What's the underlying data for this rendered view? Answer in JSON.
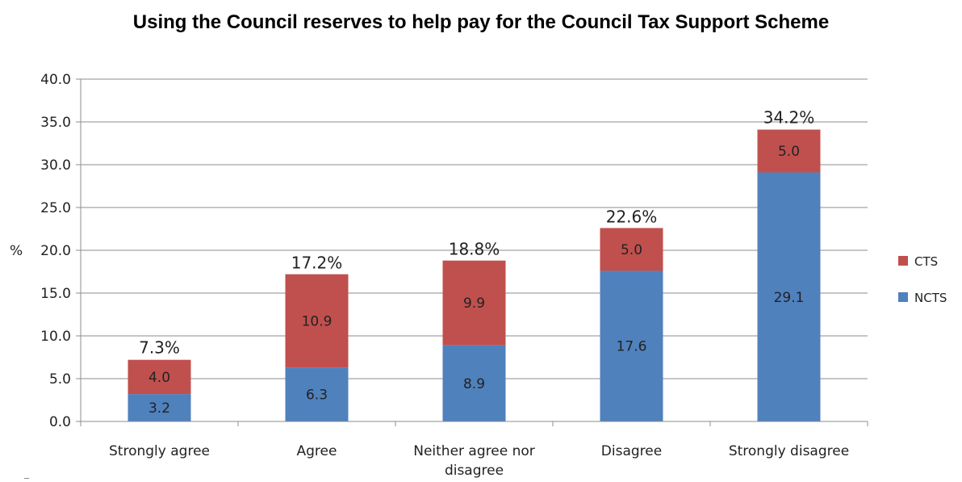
{
  "chart_data": {
    "type": "bar",
    "stacked": true,
    "title": "Using the Council reserves to help pay for the Council Tax Support Scheme",
    "ylabel": "%",
    "xlabel": "",
    "ylim": [
      0,
      40
    ],
    "y_ticks": [
      "0.0",
      "5.0",
      "10.0",
      "15.0",
      "20.0",
      "25.0",
      "30.0",
      "35.0",
      "40.0"
    ],
    "grid": true,
    "legend_position": "right",
    "categories": [
      [
        "Strongly agree"
      ],
      [
        "Agree"
      ],
      [
        "Neither agree nor",
        "disagree"
      ],
      [
        "Disagree"
      ],
      [
        "Strongly disagree"
      ]
    ],
    "series": [
      {
        "name": "NCTS",
        "color": "#4F81BD",
        "values": [
          3.2,
          6.3,
          8.9,
          17.6,
          29.1
        ],
        "labels": [
          "3.2",
          "6.3",
          "8.9",
          "17.6",
          "29.1"
        ]
      },
      {
        "name": "CTS",
        "color": "#C0504D",
        "values": [
          4.0,
          10.9,
          9.9,
          5.0,
          5.0
        ],
        "labels": [
          "4.0",
          "10.9",
          "9.9",
          "5.0",
          "5.0"
        ]
      }
    ],
    "totals": [
      7.3,
      17.2,
      18.8,
      22.6,
      34.2
    ],
    "total_labels": [
      "7.3%",
      "17.2%",
      "18.8%",
      "22.6%",
      "34.2%"
    ],
    "legend": [
      {
        "name": "CTS",
        "color": "#C0504D"
      },
      {
        "name": "NCTS",
        "color": "#4F81BD"
      }
    ]
  }
}
